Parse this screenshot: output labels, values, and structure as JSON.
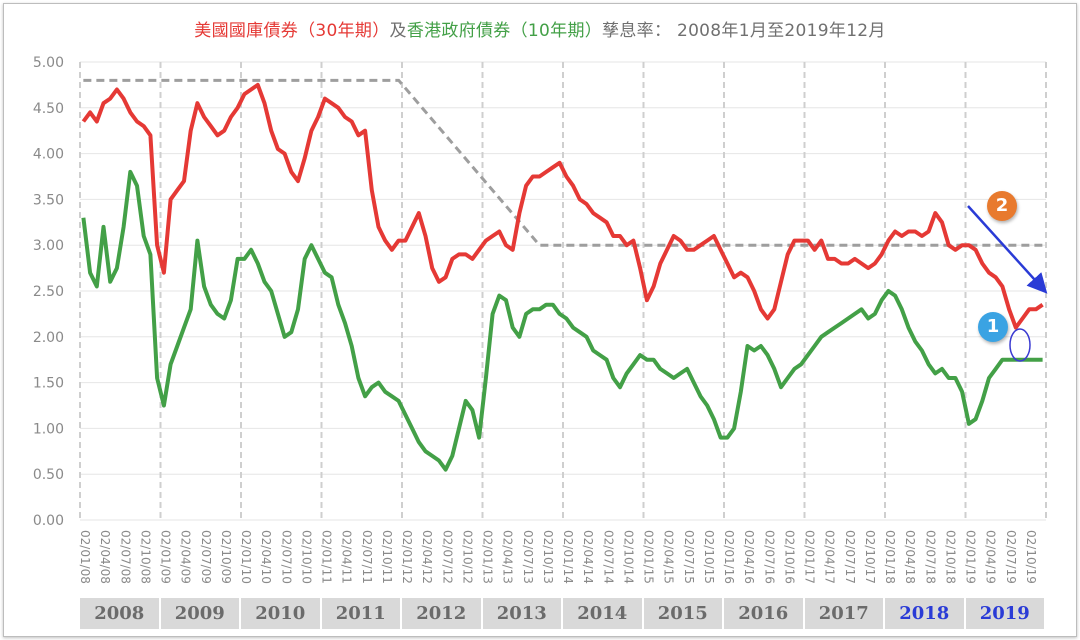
{
  "title": {
    "part1": "美國國庫債券（30年期）",
    "part2": "及",
    "part3": "香港政府債券（10年期）",
    "part4": "孳息率： 2008年1月至2019年12月"
  },
  "colors": {
    "us30": "#e53935",
    "hk10": "#43a047",
    "trend": "#9e9e9e",
    "arrow": "#2a3bd6",
    "badge1": "#3aa3e3",
    "badge2": "#e87a2e",
    "highlight_year": "#2a3bd6"
  },
  "annotations": {
    "badge1": "1",
    "badge2": "2"
  },
  "chart_data": {
    "type": "line",
    "title": "美國國庫債券（30年期）及香港政府債券（10年期）孳息率： 2008年1月至2019年12月",
    "xlabel": "",
    "ylabel": "",
    "ylim": [
      0,
      5
    ],
    "yticks": [
      "0.00",
      "0.50",
      "1.00",
      "1.50",
      "2.00",
      "2.50",
      "3.00",
      "3.50",
      "4.00",
      "4.50",
      "5.00"
    ],
    "grid": true,
    "xtick_labels": [
      "02/01/08",
      "02/04/08",
      "02/07/08",
      "02/10/08",
      "02/01/09",
      "02/04/09",
      "02/07/09",
      "02/10/09",
      "02/01/10",
      "02/04/10",
      "02/07/10",
      "02/10/10",
      "02/01/11",
      "02/04/11",
      "02/07/11",
      "02/10/11",
      "02/01/12",
      "02/04/12",
      "02/07/12",
      "02/10/12",
      "02/01/13",
      "02/04/13",
      "02/07/13",
      "02/10/13",
      "02/01/14",
      "02/04/14",
      "02/07/14",
      "02/10/14",
      "02/01/15",
      "02/04/15",
      "02/07/15",
      "02/10/15",
      "02/01/16",
      "02/04/16",
      "02/07/16",
      "02/10/16",
      "02/01/17",
      "02/04/17",
      "02/07/17",
      "02/10/17",
      "02/01/18",
      "02/04/18",
      "02/07/18",
      "02/10/18",
      "02/01/19",
      "02/04/19",
      "02/07/19",
      "02/10/19"
    ],
    "years": [
      "2008",
      "2009",
      "2010",
      "2011",
      "2012",
      "2013",
      "2014",
      "2015",
      "2016",
      "2017",
      "2018",
      "2019"
    ],
    "highlight_years": [
      "2018",
      "2019"
    ],
    "x_start": "2008-01",
    "x_end": "2019-12",
    "series": [
      {
        "name": "美國國庫債券（30年期）",
        "color": "#e53935",
        "values": [
          4.35,
          4.45,
          4.35,
          4.55,
          4.6,
          4.7,
          4.6,
          4.45,
          4.35,
          4.3,
          4.2,
          3.0,
          2.7,
          3.5,
          3.6,
          3.7,
          4.25,
          4.55,
          4.4,
          4.3,
          4.2,
          4.25,
          4.4,
          4.5,
          4.65,
          4.7,
          4.75,
          4.55,
          4.25,
          4.05,
          4.0,
          3.8,
          3.7,
          3.95,
          4.25,
          4.4,
          4.6,
          4.55,
          4.5,
          4.4,
          4.35,
          4.2,
          4.25,
          3.6,
          3.2,
          3.05,
          2.95,
          3.05,
          3.05,
          3.2,
          3.35,
          3.1,
          2.75,
          2.6,
          2.65,
          2.85,
          2.9,
          2.9,
          2.85,
          2.95,
          3.05,
          3.1,
          3.15,
          3.0,
          2.95,
          3.35,
          3.65,
          3.75,
          3.75,
          3.8,
          3.85,
          3.9,
          3.75,
          3.65,
          3.5,
          3.45,
          3.35,
          3.3,
          3.25,
          3.1,
          3.1,
          3.0,
          3.05,
          2.75,
          2.4,
          2.55,
          2.8,
          2.95,
          3.1,
          3.05,
          2.95,
          2.95,
          3.0,
          3.05,
          3.1,
          2.95,
          2.8,
          2.65,
          2.7,
          2.65,
          2.5,
          2.3,
          2.2,
          2.3,
          2.6,
          2.9,
          3.05,
          3.05,
          3.05,
          2.95,
          3.05,
          2.85,
          2.85,
          2.8,
          2.8,
          2.85,
          2.8,
          2.75,
          2.8,
          2.9,
          3.05,
          3.15,
          3.1,
          3.15,
          3.15,
          3.1,
          3.15,
          3.35,
          3.25,
          3.0,
          2.95,
          3.0,
          3.0,
          2.95,
          2.8,
          2.7,
          2.65,
          2.55,
          2.3,
          2.1,
          2.2,
          2.3,
          2.3,
          2.35
        ]
      },
      {
        "name": "香港政府債券（10年期）",
        "color": "#43a047",
        "values": [
          3.3,
          2.7,
          2.55,
          3.2,
          2.6,
          2.75,
          3.2,
          3.8,
          3.65,
          3.1,
          2.9,
          1.55,
          1.25,
          1.7,
          1.9,
          2.1,
          2.3,
          3.05,
          2.55,
          2.35,
          2.25,
          2.2,
          2.4,
          2.85,
          2.85,
          2.95,
          2.8,
          2.6,
          2.5,
          2.25,
          2.0,
          2.05,
          2.3,
          2.85,
          3.0,
          2.85,
          2.7,
          2.65,
          2.35,
          2.15,
          1.9,
          1.55,
          1.35,
          1.45,
          1.5,
          1.4,
          1.35,
          1.3,
          1.15,
          1.0,
          0.85,
          0.75,
          0.7,
          0.65,
          0.55,
          0.7,
          1.0,
          1.3,
          1.2,
          0.9,
          1.55,
          2.25,
          2.45,
          2.4,
          2.1,
          2.0,
          2.25,
          2.3,
          2.3,
          2.35,
          2.35,
          2.25,
          2.2,
          2.1,
          2.05,
          2.0,
          1.85,
          1.8,
          1.75,
          1.55,
          1.45,
          1.6,
          1.7,
          1.8,
          1.75,
          1.75,
          1.65,
          1.6,
          1.55,
          1.6,
          1.65,
          1.5,
          1.35,
          1.25,
          1.1,
          0.9,
          0.9,
          1.0,
          1.4,
          1.9,
          1.85,
          1.9,
          1.8,
          1.65,
          1.45,
          1.55,
          1.65,
          1.7,
          1.8,
          1.9,
          2.0,
          2.05,
          2.1,
          2.15,
          2.2,
          2.25,
          2.3,
          2.2,
          2.25,
          2.4,
          2.5,
          2.45,
          2.3,
          2.1,
          1.95,
          1.85,
          1.7,
          1.6,
          1.65,
          1.55,
          1.55,
          1.4,
          1.05,
          1.1,
          1.3,
          1.55,
          1.65,
          1.75,
          1.75,
          1.75,
          1.75,
          1.75,
          1.75,
          1.75
        ]
      }
    ],
    "reference_lines": [
      {
        "name": "trend-guide",
        "style": "dashed",
        "points": [
          [
            "2008-01",
            4.8
          ],
          [
            "2011-12",
            4.8
          ],
          [
            "2013-09",
            3.0
          ],
          [
            "2019-12",
            3.0
          ]
        ]
      },
      {
        "name": "downtrend-arrow",
        "style": "arrow",
        "points": [
          [
            "2018-12",
            3.45
          ],
          [
            "2019-12",
            2.5
          ]
        ]
      }
    ],
    "markers": [
      {
        "label": "1",
        "date": "2019-08",
        "value": 2.0,
        "type": "ellipse"
      },
      {
        "label": "2",
        "near": "arrow-start"
      }
    ]
  }
}
